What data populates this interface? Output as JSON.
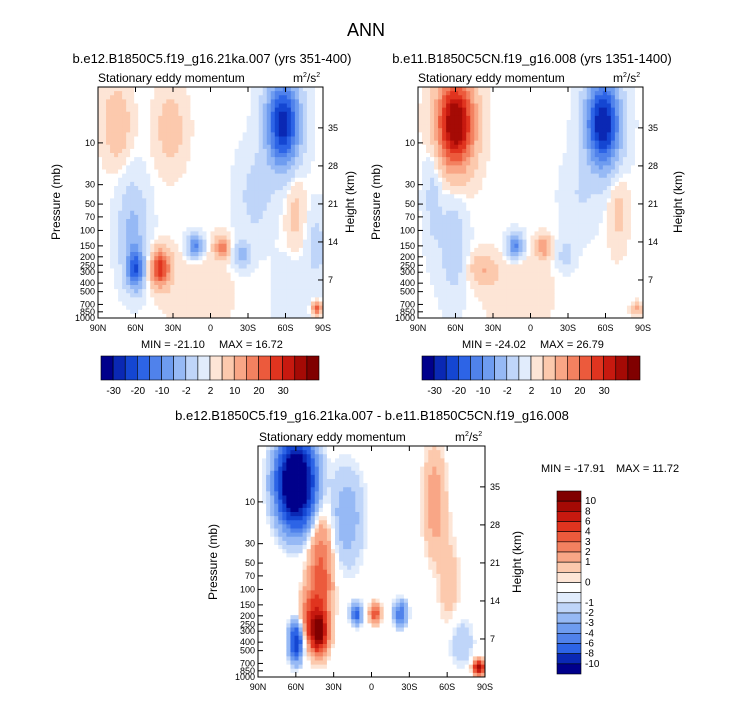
{
  "figure_title": "ANN",
  "colors": {
    "neg": [
      "#00008b",
      "#0a28b4",
      "#1446d2",
      "#2d64e6",
      "#5082eb",
      "#6e9cf0",
      "#96b9f5",
      "#bfd5f9",
      "#e1ecfc"
    ],
    "neutral": "#ffffff",
    "pos": [
      "#fde5d6",
      "#fcc9ad",
      "#f9a686",
      "#f38160",
      "#ec5a3c",
      "#e0341f",
      "#c7190f",
      "#a50a05",
      "#800000"
    ]
  },
  "chart_data": [
    {
      "type": "contour",
      "title": "b.e12.B1850C5.f19_g16.21ka.007 (yrs 351-400)",
      "subtitle": "Stationary eddy momentum",
      "units": "m²/s²",
      "units_base": "m",
      "units_exp1": "2",
      "units_mid": "/s",
      "units_exp2": "2",
      "xlabel": "",
      "ylabel": "Pressure (mb)",
      "ylabel_right": "Height (km)",
      "x_ticks": [
        "90N",
        "60N",
        "30N",
        "0",
        "30S",
        "60S",
        "90S"
      ],
      "x_values": [
        90,
        60,
        30,
        0,
        -30,
        -60,
        -90
      ],
      "y_ticks": [
        "10",
        "30",
        "50",
        "70",
        "100",
        "150",
        "200",
        "250",
        "300",
        "400",
        "500",
        "700",
        "850",
        "1000"
      ],
      "y_values": [
        10,
        30,
        50,
        70,
        100,
        150,
        200,
        250,
        300,
        400,
        500,
        700,
        850,
        1000
      ],
      "y_ticks_right": [
        "35",
        "28",
        "21",
        "14",
        "7"
      ],
      "ylim": [
        1000,
        2.3
      ],
      "min_label": "MIN = -21.10",
      "max_label": "MAX = 16.72",
      "cb_labels": [
        "-30",
        "-20",
        "-10",
        "-2",
        "2",
        "10",
        "20",
        "30"
      ],
      "blobs": [
        {
          "lat": -58,
          "p": 6,
          "w": 13,
          "h": 1.1,
          "a": -22
        },
        {
          "lat": 75,
          "p": 6,
          "w": 10,
          "h": 0.9,
          "a": 5
        },
        {
          "lat": 32,
          "p": 7,
          "w": 11,
          "h": 0.9,
          "a": 4
        },
        {
          "lat": 60,
          "p": 280,
          "w": 7,
          "h": 0.5,
          "a": -15
        },
        {
          "lat": 62,
          "p": 100,
          "w": 11,
          "h": 1.2,
          "a": -6
        },
        {
          "lat": 40,
          "p": 270,
          "w": 8,
          "h": 0.45,
          "a": 16
        },
        {
          "lat": 12,
          "p": 150,
          "w": 6,
          "h": 0.28,
          "a": -12
        },
        {
          "lat": -9,
          "p": 155,
          "w": 6,
          "h": 0.28,
          "a": 10
        },
        {
          "lat": -25,
          "p": 190,
          "w": 7,
          "h": 0.35,
          "a": -6
        },
        {
          "lat": -36,
          "p": 40,
          "w": 14,
          "h": 1.1,
          "a": -3
        },
        {
          "lat": -68,
          "p": 60,
          "w": 7,
          "h": 1.0,
          "a": 3
        },
        {
          "lat": -85,
          "p": 150,
          "w": 8,
          "h": 0.9,
          "a": -3
        },
        {
          "lat": -85,
          "p": 780,
          "w": 4,
          "h": 0.15,
          "a": 12
        },
        {
          "lat": -66,
          "p": 500,
          "w": 14,
          "h": 0.9,
          "a": -2
        },
        {
          "lat": 10,
          "p": 500,
          "w": 22,
          "h": 0.8,
          "a": 2
        }
      ]
    },
    {
      "type": "contour",
      "title": "b.e11.B1850C5CN.f19_g16.008 (yrs 1351-1400)",
      "subtitle": "Stationary eddy momentum",
      "units": "m²/s²",
      "units_base": "m",
      "units_exp1": "2",
      "units_mid": "/s",
      "units_exp2": "2",
      "xlabel": "",
      "ylabel": "Pressure (mb)",
      "ylabel_right": "Height (km)",
      "x_ticks": [
        "90N",
        "60N",
        "30N",
        "0",
        "30S",
        "60S",
        "90S"
      ],
      "x_values": [
        90,
        60,
        30,
        0,
        -30,
        -60,
        -90
      ],
      "y_ticks": [
        "10",
        "30",
        "50",
        "70",
        "100",
        "150",
        "200",
        "250",
        "300",
        "400",
        "500",
        "700",
        "850",
        "1000"
      ],
      "y_values": [
        10,
        30,
        50,
        70,
        100,
        150,
        200,
        250,
        300,
        400,
        500,
        700,
        850,
        1000
      ],
      "y_ticks_right": [
        "35",
        "28",
        "21",
        "14",
        "7"
      ],
      "ylim": [
        1000,
        2.3
      ],
      "min_label": "MIN = -24.02",
      "max_label": "MAX = 26.79",
      "cb_labels": [
        "-30",
        "-20",
        "-10",
        "-2",
        "2",
        "10",
        "20",
        "30"
      ],
      "blobs": [
        {
          "lat": 60,
          "p": 6,
          "w": 14,
          "h": 1.1,
          "a": 25
        },
        {
          "lat": -58,
          "p": 6,
          "w": 13,
          "h": 1.1,
          "a": -24
        },
        {
          "lat": 78,
          "p": 40,
          "w": 7,
          "h": 1.4,
          "a": -3
        },
        {
          "lat": 62,
          "p": 150,
          "w": 10,
          "h": 1.3,
          "a": -4
        },
        {
          "lat": 12,
          "p": 150,
          "w": 6,
          "h": 0.3,
          "a": -12
        },
        {
          "lat": -10,
          "p": 155,
          "w": 6,
          "h": 0.28,
          "a": 8
        },
        {
          "lat": 38,
          "p": 280,
          "w": 10,
          "h": 0.4,
          "a": 5
        },
        {
          "lat": -28,
          "p": 190,
          "w": 7,
          "h": 0.4,
          "a": -3
        },
        {
          "lat": -40,
          "p": 40,
          "w": 14,
          "h": 1.0,
          "a": -2
        },
        {
          "lat": -70,
          "p": 60,
          "w": 7,
          "h": 0.9,
          "a": 3
        },
        {
          "lat": -85,
          "p": 780,
          "w": 4,
          "h": 0.15,
          "a": 6
        },
        {
          "lat": 10,
          "p": 500,
          "w": 22,
          "h": 0.8,
          "a": 2
        }
      ]
    },
    {
      "type": "contour",
      "title": "b.e12.B1850C5.f19_g16.21ka.007 - b.e11.B1850C5CN.f19_g16.008",
      "subtitle": "Stationary eddy momentum",
      "units": "m²/s²",
      "units_base": "m",
      "units_exp1": "2",
      "units_mid": "/s",
      "units_exp2": "2",
      "xlabel": "",
      "ylabel": "Pressure (mb)",
      "ylabel_right": "Height (km)",
      "x_ticks": [
        "90N",
        "60N",
        "30N",
        "0",
        "30S",
        "60S",
        "90S"
      ],
      "x_values": [
        90,
        60,
        30,
        0,
        -30,
        -60,
        -90
      ],
      "y_ticks": [
        "10",
        "30",
        "50",
        "70",
        "100",
        "150",
        "200",
        "250",
        "300",
        "400",
        "500",
        "700",
        "850",
        "1000"
      ],
      "y_values": [
        10,
        30,
        50,
        70,
        100,
        150,
        200,
        250,
        300,
        400,
        500,
        700,
        850,
        1000
      ],
      "y_ticks_right": [
        "35",
        "28",
        "21",
        "14",
        "7"
      ],
      "ylim": [
        1000,
        2.3
      ],
      "min_label": "MIN = -17.91",
      "max_label": "MAX = 11.72",
      "cb_labels": [
        "10",
        "8",
        "6",
        "4",
        "3",
        "2",
        "1",
        "0",
        "-1",
        "-2",
        "-3",
        "-4",
        "-6",
        "-8",
        "-10"
      ],
      "blobs": [
        {
          "lat": 60,
          "p": 6,
          "w": 13,
          "h": 1.0,
          "a": -18
        },
        {
          "lat": 40,
          "p": 70,
          "w": 9,
          "h": 1.5,
          "a": 3.5
        },
        {
          "lat": 42,
          "p": 300,
          "w": 6,
          "h": 0.45,
          "a": 11
        },
        {
          "lat": 60,
          "p": 400,
          "w": 5,
          "h": 0.45,
          "a": -8
        },
        {
          "lat": 48,
          "p": 200,
          "w": 8,
          "h": 0.7,
          "a": 3
        },
        {
          "lat": 12,
          "p": 190,
          "w": 4,
          "h": 0.25,
          "a": -5
        },
        {
          "lat": -3,
          "p": 190,
          "w": 4,
          "h": 0.25,
          "a": 4
        },
        {
          "lat": -23,
          "p": 190,
          "w": 5,
          "h": 0.3,
          "a": -4
        },
        {
          "lat": 20,
          "p": 15,
          "w": 14,
          "h": 1.3,
          "a": -1.5
        },
        {
          "lat": -50,
          "p": 10,
          "w": 9,
          "h": 1.4,
          "a": 1.5
        },
        {
          "lat": -62,
          "p": 100,
          "w": 9,
          "h": 1.4,
          "a": 0.8
        },
        {
          "lat": -85,
          "p": 780,
          "w": 4,
          "h": 0.18,
          "a": 9
        },
        {
          "lat": -70,
          "p": 400,
          "w": 11,
          "h": 0.7,
          "a": -1
        }
      ]
    }
  ]
}
